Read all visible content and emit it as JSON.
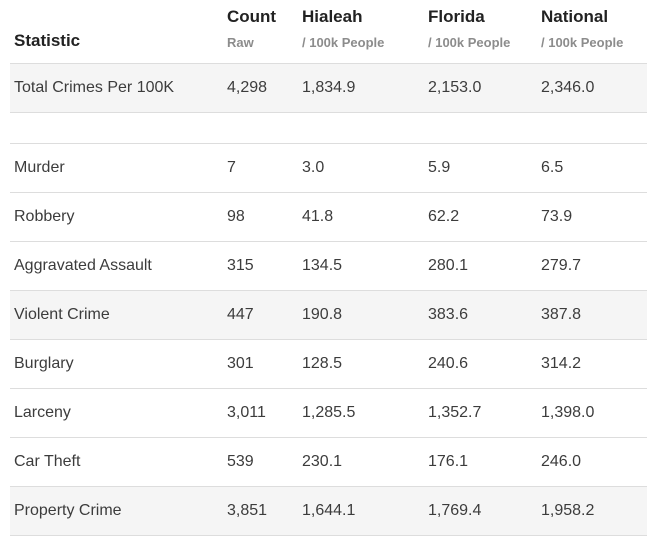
{
  "table": {
    "header": {
      "statistic_label": "Statistic",
      "columns": [
        {
          "label": "Count",
          "sublabel": "Raw"
        },
        {
          "label": "Hialeah",
          "sublabel": "/ 100k People"
        },
        {
          "label": "Florida",
          "sublabel": "/ 100k People"
        },
        {
          "label": "National",
          "sublabel": "/ 100k People"
        }
      ]
    },
    "rows": [
      {
        "statistic": "Total Crimes Per 100K",
        "values": [
          "4,298",
          "1,834.9",
          "2,153.0",
          "2,346.0"
        ],
        "highlight": true
      },
      {
        "statistic": "Murder",
        "values": [
          "7",
          "3.0",
          "5.9",
          "6.5"
        ],
        "highlight": false
      },
      {
        "statistic": "Robbery",
        "values": [
          "98",
          "41.8",
          "62.2",
          "73.9"
        ],
        "highlight": false
      },
      {
        "statistic": "Aggravated Assault",
        "values": [
          "315",
          "134.5",
          "280.1",
          "279.7"
        ],
        "highlight": false
      },
      {
        "statistic": "Violent Crime",
        "values": [
          "447",
          "190.8",
          "383.6",
          "387.8"
        ],
        "highlight": true
      },
      {
        "statistic": "Burglary",
        "values": [
          "301",
          "128.5",
          "240.6",
          "314.2"
        ],
        "highlight": false
      },
      {
        "statistic": "Larceny",
        "values": [
          "3,011",
          "1,285.5",
          "1,352.7",
          "1,398.0"
        ],
        "highlight": false
      },
      {
        "statistic": "Car Theft",
        "values": [
          "539",
          "230.1",
          "176.1",
          "246.0"
        ],
        "highlight": false
      },
      {
        "statistic": "Property Crime",
        "values": [
          "3,851",
          "1,644.1",
          "1,769.4",
          "1,958.2"
        ],
        "highlight": true
      }
    ],
    "colors": {
      "header_text": "#222222",
      "sublabel_text": "#8c8c8c",
      "data_text": "#3c3c3c",
      "highlight_row_bg": "#f5f5f5",
      "border": "#dddddd"
    }
  },
  "chart_data": {
    "type": "table",
    "title": "",
    "columns": [
      "Statistic",
      "Count (Raw)",
      "Hialeah (/ 100k People)",
      "Florida (/ 100k People)",
      "National (/ 100k People)"
    ],
    "rows": [
      [
        "Total Crimes Per 100K",
        4298,
        1834.9,
        2153.0,
        2346.0
      ],
      [
        "Murder",
        7,
        3.0,
        5.9,
        6.5
      ],
      [
        "Robbery",
        98,
        41.8,
        62.2,
        73.9
      ],
      [
        "Aggravated Assault",
        315,
        134.5,
        280.1,
        279.7
      ],
      [
        "Violent Crime",
        447,
        190.8,
        383.6,
        387.8
      ],
      [
        "Burglary",
        301,
        128.5,
        240.6,
        314.2
      ],
      [
        "Larceny",
        3011,
        1285.5,
        1352.7,
        1398.0
      ],
      [
        "Car Theft",
        539,
        230.1,
        176.1,
        246.0
      ],
      [
        "Property Crime",
        3851,
        1644.1,
        1769.4,
        1958.2
      ]
    ]
  }
}
